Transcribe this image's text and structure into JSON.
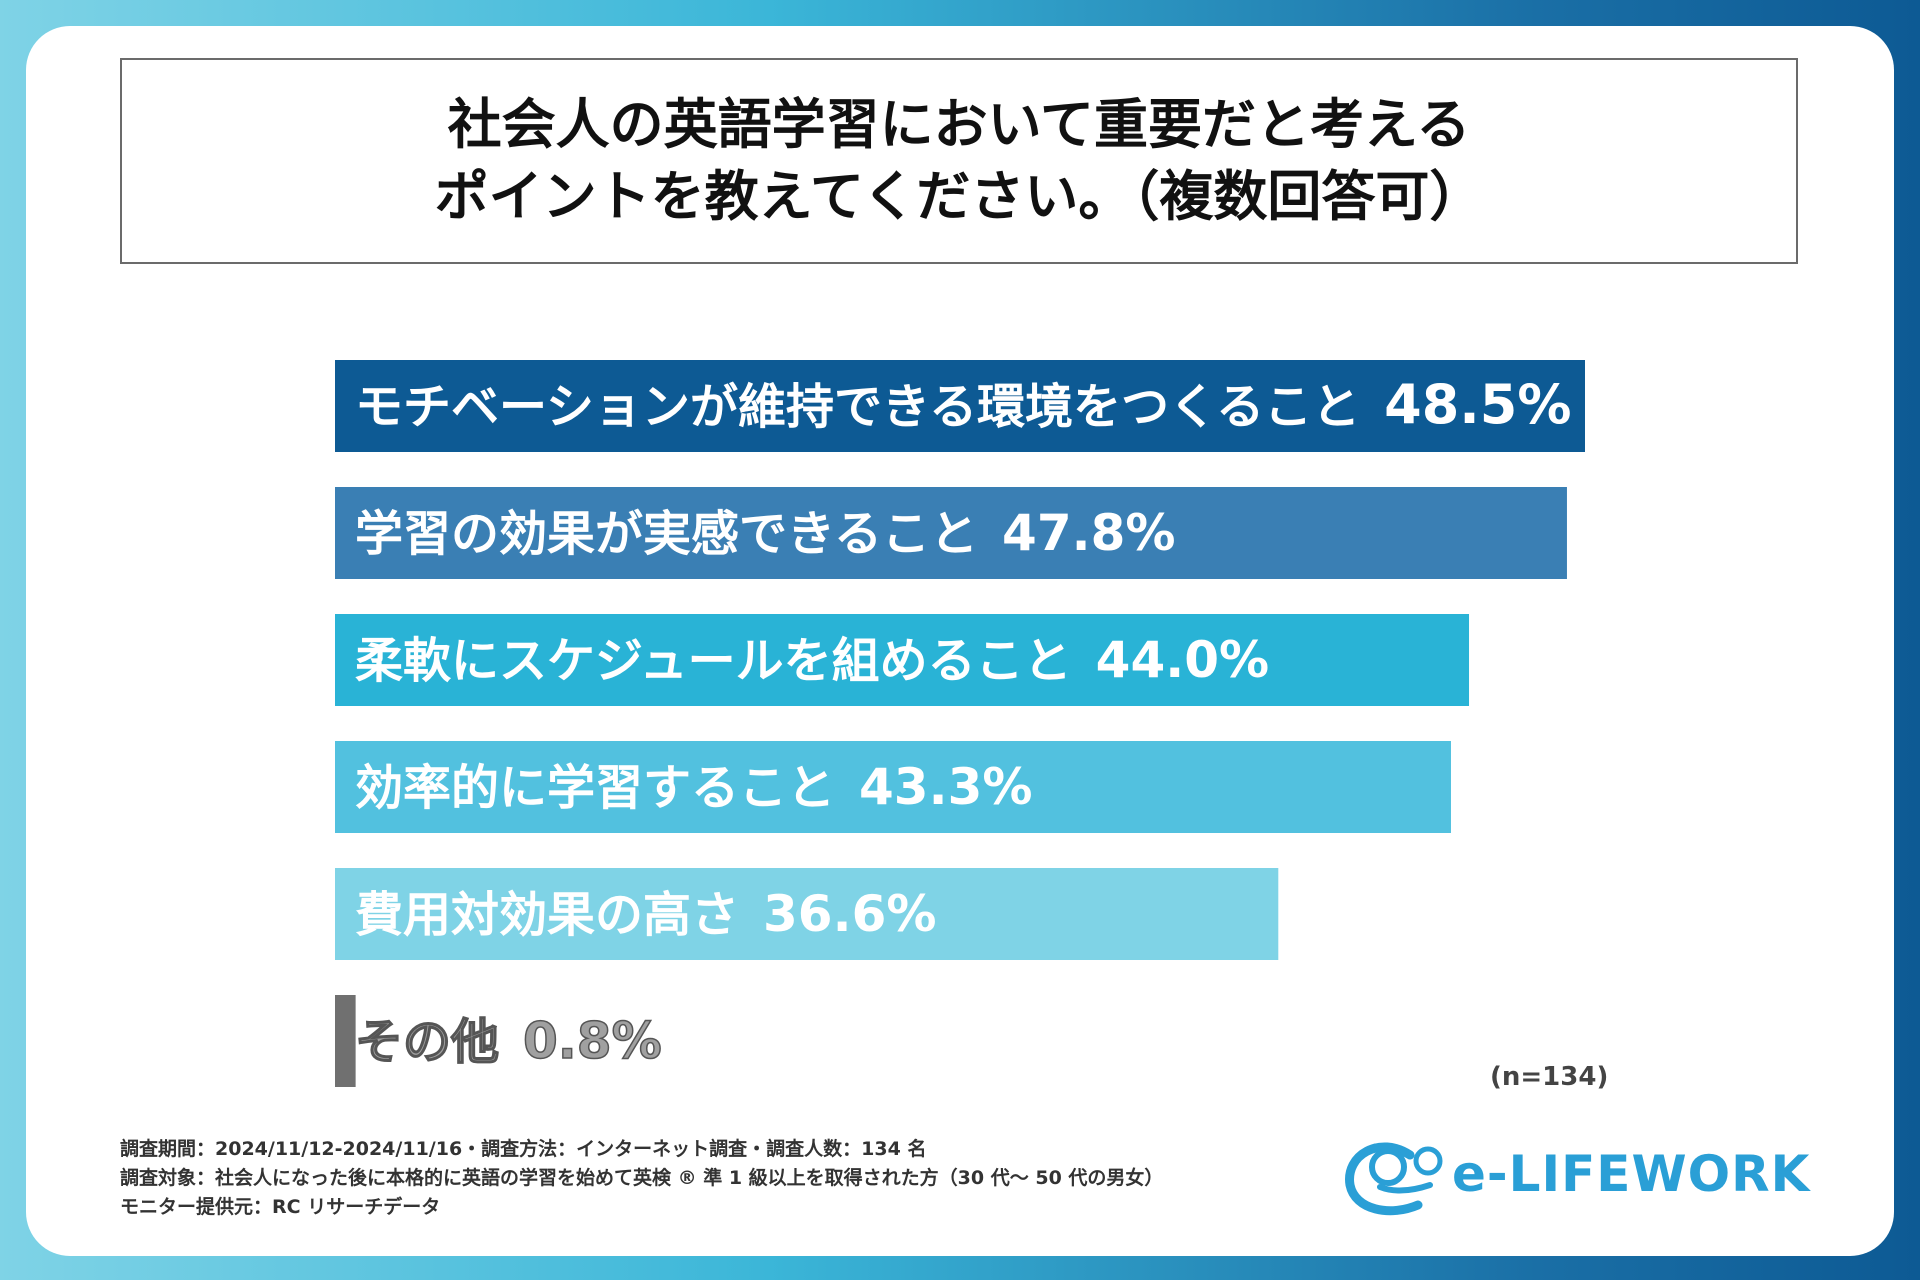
{
  "colors": {
    "bars": [
      "#0d5a94",
      "#3a7fb4",
      "#29b3d6",
      "#52c1df",
      "#7fd3e6",
      "#707070"
    ],
    "other_label": "#a0a0a0",
    "logo": "#2a9fd6"
  },
  "title": {
    "line1": "社会人の英語学習において重要だと考える",
    "line2": "ポイントを教えてください。（複数回答可）"
  },
  "chart_data": {
    "type": "bar",
    "orientation": "horizontal",
    "title": "社会人の英語学習において重要だと考えるポイントを教えてください。（複数回答可）",
    "categories": [
      "モチベーションが維持できる環境をつくること",
      "学習の効果が実感できること",
      "柔軟にスケジュールを組めること",
      "効率的に学習すること",
      "費用対効果の高さ",
      "その他"
    ],
    "values": [
      48.5,
      47.8,
      44.0,
      43.3,
      36.6,
      0.8
    ],
    "value_labels": [
      "48.5%",
      "47.8%",
      "44.0%",
      "43.3%",
      "36.6%",
      "0.8%"
    ],
    "unit": "%",
    "xlim": [
      0,
      48.5
    ],
    "grid": false,
    "legend": "none"
  },
  "n_note": "(n=134)",
  "footer": {
    "line1": "調査期間：2024/11/12-2024/11/16・調査方法：インターネット調査・調査人数：134 名",
    "line2": "調査対象：社会人になった後に本格的に英語の学習を始めて英検 ® 準 1 級以上を取得された方（30 代～ 50 代の男女）",
    "line3": "モニター提供元：RC リサーチデータ"
  },
  "logo": {
    "text": "e-LIFEWORK",
    "icon": "person-swirl-icon"
  }
}
